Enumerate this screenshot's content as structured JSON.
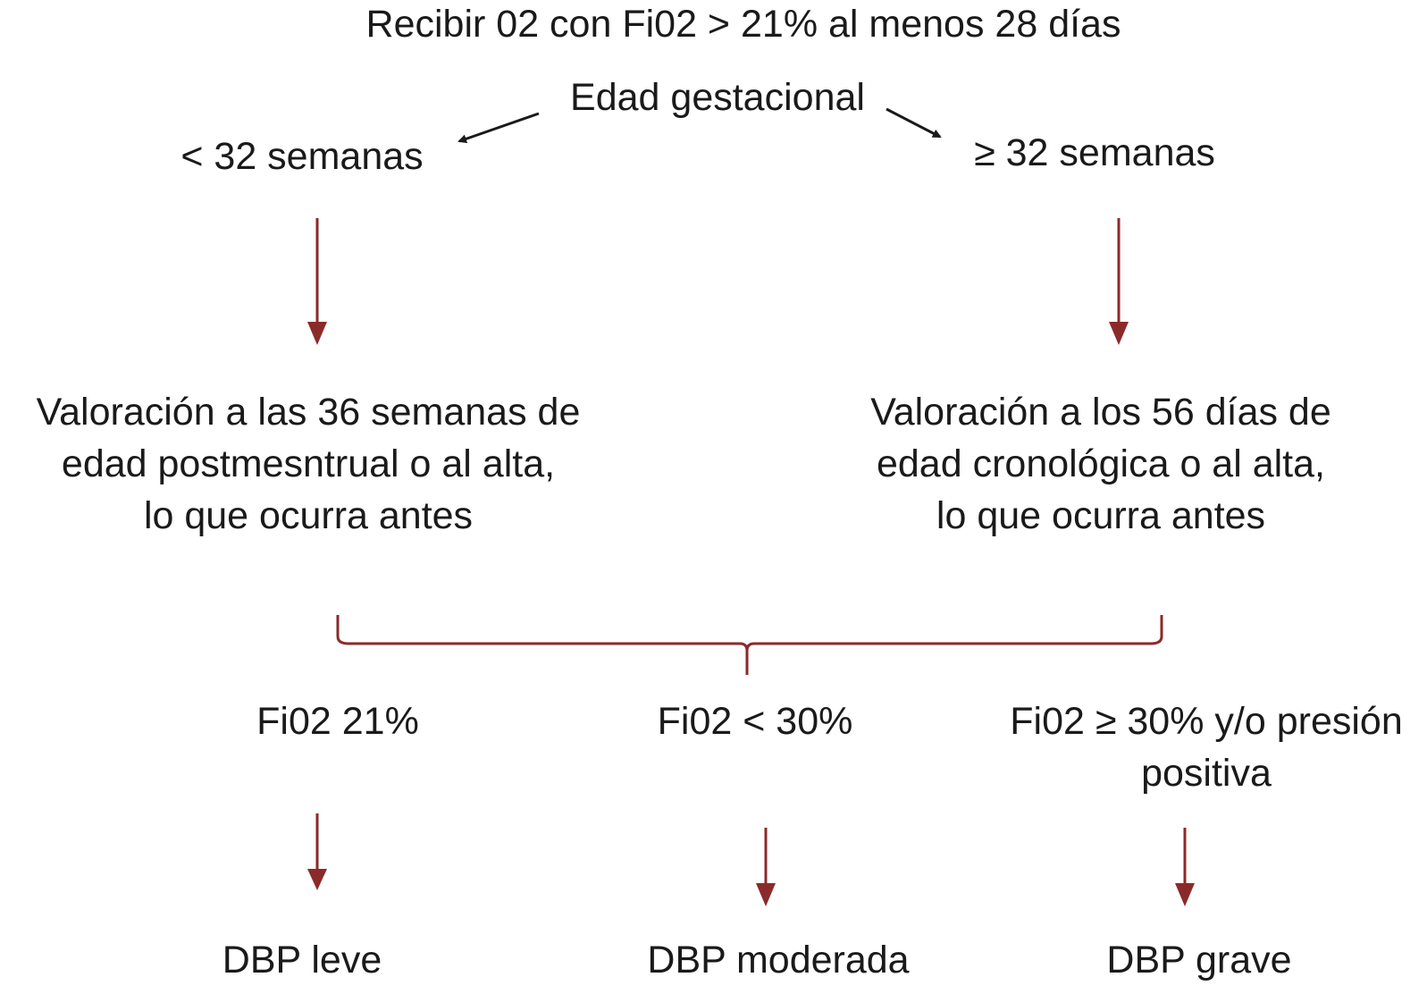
{
  "colors": {
    "arrow": "#8b2a2a",
    "text": "#1a1a1a",
    "black_arrow": "#1a1a1a"
  },
  "header": "Recibir 02 con Fi02 > 21% al menos 28 días",
  "gestational": {
    "label": "Edad gestacional",
    "left": "< 32 semanas",
    "right": "≥ 32 semanas"
  },
  "assessment": {
    "left": [
      "Valoración a las 36 semanas de",
      "edad postmesntrual o al alta,",
      "lo que ocurra antes"
    ],
    "right": [
      "Valoración a los 56 días de",
      "edad cronológica o al alta,",
      "lo que ocurra antes"
    ]
  },
  "criteria": {
    "mild": "Fi02 21%",
    "moderate": "Fi02 < 30%",
    "severe": [
      "Fi02 ≥ 30% y/o presión",
      "positiva"
    ]
  },
  "outcomes": {
    "mild": "DBP leve",
    "moderate": "DBP moderada",
    "severe": "DBP grave"
  }
}
